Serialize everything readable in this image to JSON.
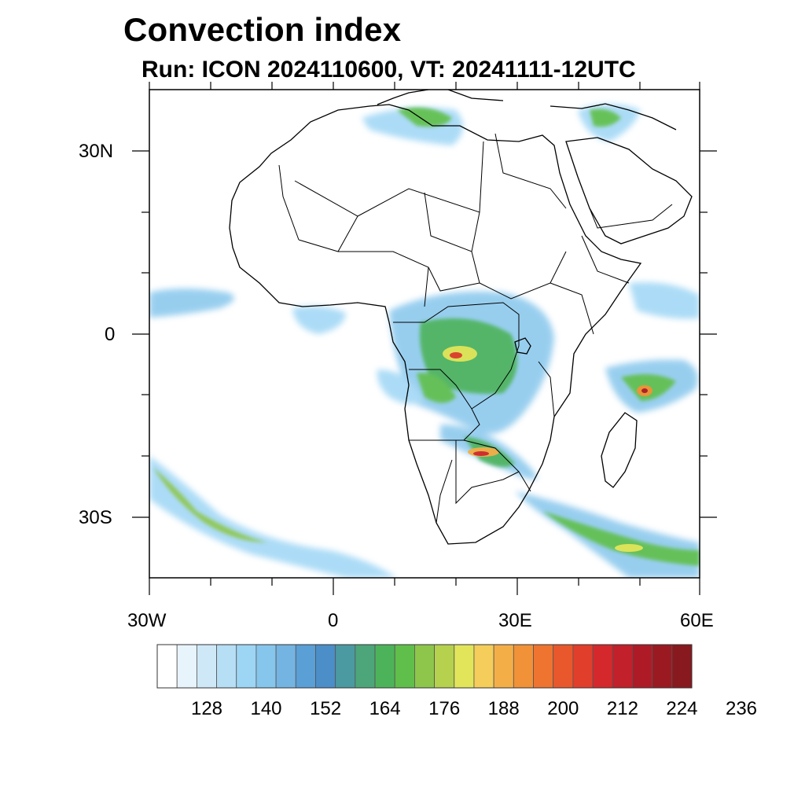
{
  "header": {
    "title": "Convection index",
    "subtitle": "Run: ICON 2024110600,  VT: 20241111-12UTC"
  },
  "map": {
    "extent": {
      "lon_min": -30,
      "lon_max": 60,
      "lat_min": -40,
      "lat_max": 40
    },
    "lat_labels": [
      {
        "lat": 30,
        "text": "30N"
      },
      {
        "lat": 0,
        "text": "0"
      },
      {
        "lat": -30,
        "text": "30S"
      }
    ],
    "lon_labels": [
      {
        "lon": -30,
        "text": "30W"
      },
      {
        "lon": 0,
        "text": "0"
      },
      {
        "lon": 30,
        "text": "30E"
      },
      {
        "lon": 60,
        "text": "60E"
      }
    ],
    "field_name": "Convection index"
  },
  "colorbar": {
    "colors": [
      "#ffffff",
      "#e8f4fb",
      "#cfe8f7",
      "#b6def5",
      "#9dd5f5",
      "#86c6ec",
      "#74b4e2",
      "#5a9fd6",
      "#4b8ec8",
      "#4b9aa2",
      "#4ca67a",
      "#4db35a",
      "#60bf4a",
      "#8ec64b",
      "#b5d14d",
      "#e2e55a",
      "#f5cd5a",
      "#f4ae48",
      "#f19238",
      "#ee7430",
      "#e9582c",
      "#e23e2c",
      "#d5282c",
      "#c2202b",
      "#ae1b27",
      "#9b1a22",
      "#881a1f"
    ],
    "tick_labels": [
      "128",
      "140",
      "152",
      "164",
      "176",
      "188",
      "200",
      "212",
      "224",
      "236"
    ]
  }
}
